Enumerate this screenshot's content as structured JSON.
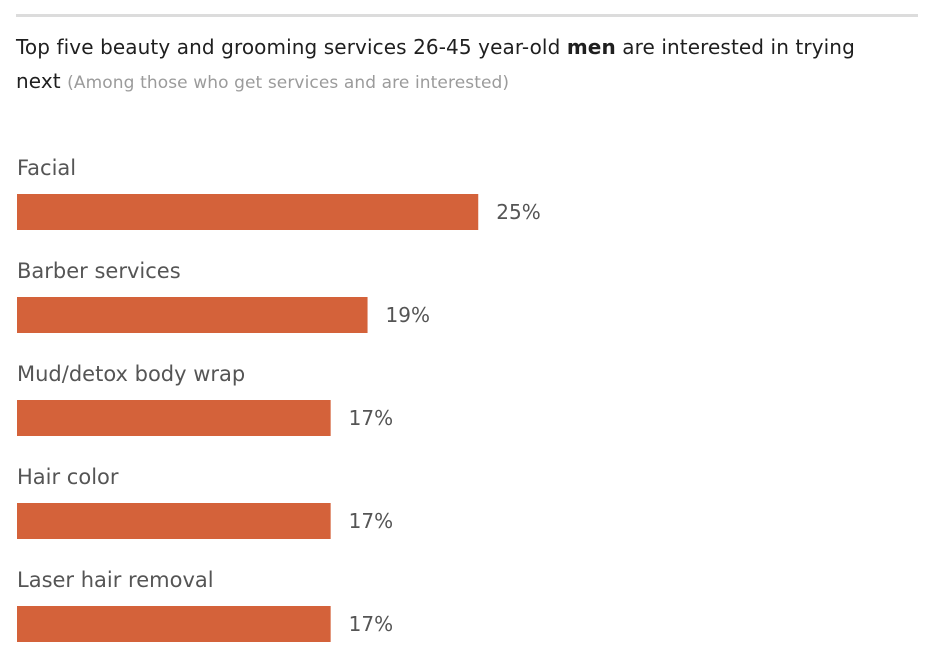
{
  "header": {
    "title_part1": "Top five beauty and grooming services 26-45 year-old ",
    "title_bold": "men",
    "title_part2": " are interested in trying next ",
    "subtitle": "(Among those who get services and are interested)"
  },
  "chart_data": {
    "type": "bar",
    "orientation": "horizontal",
    "categories": [
      "Facial",
      "Barber services",
      "Mud/detox body wrap",
      "Hair color",
      "Laser hair removal"
    ],
    "values": [
      25,
      19,
      17,
      17,
      17
    ],
    "value_labels": [
      "25%",
      "19%",
      "17%",
      "17%",
      "17%"
    ],
    "unit": "%",
    "bar_color": "#d4623a",
    "label_color": "#555555",
    "xlim": [
      0,
      50
    ],
    "grid": false,
    "legend": "none"
  }
}
